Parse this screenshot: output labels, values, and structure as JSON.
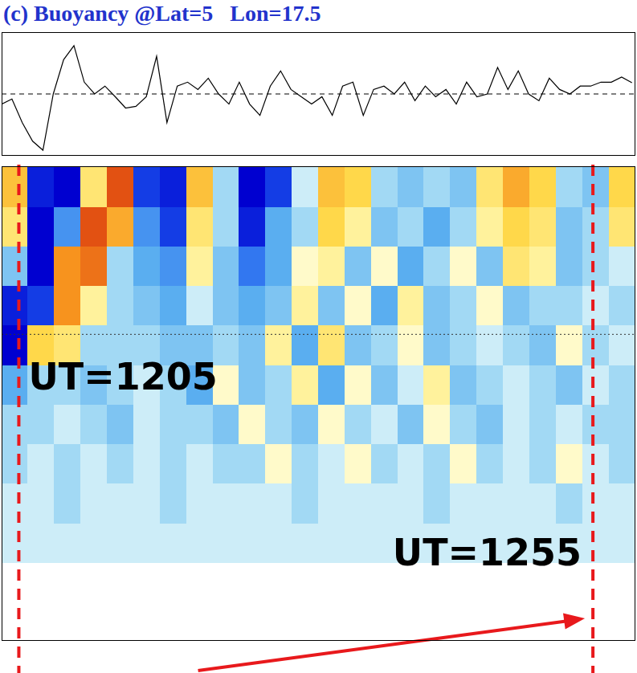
{
  "chart_data": [
    {
      "type": "line",
      "title": "(c) Buoyancy @Lat=5   Lon=17.5",
      "x": [
        1203.5,
        1204.4,
        1205.3,
        1206.2,
        1207.1,
        1208.0,
        1208.9,
        1209.8,
        1210.7,
        1211.6,
        1212.5,
        1213.4,
        1214.3,
        1215.2,
        1216.1,
        1217.0,
        1217.9,
        1218.8,
        1219.7,
        1220.6,
        1221.5,
        1222.4,
        1223.3,
        1224.2,
        1225.1,
        1226.0,
        1226.9,
        1227.8,
        1228.7,
        1229.6,
        1230.5,
        1231.4,
        1232.3,
        1233.2,
        1234.1,
        1235.0,
        1235.9,
        1236.8,
        1237.7,
        1238.6,
        1239.5,
        1240.4,
        1241.3,
        1242.2,
        1243.1,
        1244.0,
        1244.9,
        1245.8,
        1246.7,
        1247.6,
        1248.5,
        1249.4,
        1250.3,
        1251.2,
        1252.1,
        1253.0,
        1253.9,
        1254.8,
        1255.7,
        1256.6,
        1257.5,
        1258.4
      ],
      "values": [
        -0.18,
        -0.09,
        -0.51,
        -0.84,
        -1.0,
        0,
        0.61,
        0.86,
        0.21,
        0,
        0.14,
        -0.05,
        -0.25,
        -0.22,
        -0.05,
        0.67,
        -0.51,
        0.14,
        0.21,
        0.08,
        0.28,
        0,
        -0.18,
        0.21,
        -0.18,
        -0.38,
        0.14,
        0.41,
        0.08,
        -0.05,
        -0.18,
        -0.05,
        -0.38,
        0.14,
        0.21,
        -0.38,
        0.08,
        0.14,
        0,
        0.21,
        -0.12,
        0.14,
        -0.05,
        0.08,
        -0.18,
        0.21,
        -0.05,
        0,
        0.47,
        0.08,
        0.41,
        0,
        -0.12,
        0.28,
        0.08,
        0,
        0.14,
        0.14,
        0.21,
        0.21,
        0.3,
        0.2
      ],
      "color": "#000000",
      "line_style": "solid",
      "xlim": [
        1203.5,
        1258.7
      ],
      "ylim": [
        -1.1,
        1.1
      ],
      "hline": 0,
      "tick_labels": false,
      "grid": false
    },
    {
      "type": "heatmap",
      "x_edges": [
        1203.5,
        1205.8,
        1208.1,
        1210.4,
        1212.7,
        1215.0,
        1217.3,
        1219.6,
        1221.9,
        1224.2,
        1226.5,
        1228.8,
        1231.1,
        1233.4,
        1235.7,
        1238.0,
        1240.3,
        1242.6,
        1244.9,
        1247.2,
        1249.5,
        1251.8,
        1254.1,
        1256.4,
        1258.7
      ],
      "y_edges": [
        0,
        8,
        16,
        24,
        32,
        40,
        48,
        56,
        64,
        72,
        80,
        88,
        96
      ],
      "xlim": [
        1203.5,
        1258.7
      ],
      "ylim": [
        0,
        96
      ],
      "zlim": [
        -1,
        1
      ],
      "z": [
        [
          0,
          0,
          0,
          0,
          0,
          0,
          0,
          0,
          0,
          0,
          0,
          0,
          0,
          0,
          0,
          0,
          0,
          0,
          0,
          0,
          0,
          0,
          0,
          0
        ],
        [
          0,
          0,
          0,
          0,
          0,
          0,
          0,
          0,
          0,
          0,
          0,
          0,
          0,
          0,
          0,
          0,
          0,
          0,
          0,
          0,
          0,
          0,
          0,
          0
        ],
        [
          -0.1,
          -0.1,
          -0.1,
          -0.1,
          -0.1,
          -0.1,
          -0.1,
          -0.1,
          -0.1,
          -0.1,
          -0.1,
          -0.1,
          -0.1,
          -0.1,
          -0.1,
          -0.1,
          -0.1,
          -0.1,
          -0.1,
          -0.1,
          -0.1,
          -0.1,
          -0.1,
          -0.1
        ],
        [
          -0.1,
          -0.1,
          -0.2,
          -0.1,
          -0.1,
          -0.1,
          -0.2,
          -0.1,
          -0.1,
          -0.1,
          -0.1,
          -0.2,
          -0.1,
          -0.1,
          -0.1,
          -0.1,
          -0.2,
          -0.1,
          -0.1,
          -0.1,
          -0.1,
          -0.2,
          -0.1,
          -0.1
        ],
        [
          -0.2,
          -0.1,
          -0.2,
          -0.1,
          -0.2,
          -0.1,
          -0.2,
          -0.1,
          -0.2,
          -0.2,
          0.1,
          -0.2,
          -0.1,
          0.1,
          -0.2,
          -0.1,
          -0.2,
          0.1,
          -0.2,
          -0.1,
          -0.2,
          0.1,
          -0.1,
          -0.2
        ],
        [
          -0.2,
          -0.2,
          -0.1,
          -0.2,
          -0.3,
          -0.1,
          -0.2,
          -0.2,
          -0.3,
          0.1,
          -0.2,
          -0.3,
          0.1,
          -0.2,
          -0.1,
          -0.3,
          0.1,
          -0.2,
          -0.3,
          -0.1,
          -0.2,
          -0.1,
          -0.2,
          -0.2
        ],
        [
          -0.4,
          -0.2,
          -0.2,
          -0.3,
          -0.2,
          -0.1,
          -0.2,
          -0.4,
          0.1,
          -0.3,
          -0.2,
          0.2,
          -0.4,
          0.1,
          -0.3,
          -0.1,
          0.2,
          -0.3,
          -0.2,
          -0.1,
          -0.2,
          -0.3,
          -0.1,
          -0.2
        ],
        [
          -1,
          0.4,
          0.3,
          -0.2,
          -0.2,
          -0.2,
          -0.3,
          -0.3,
          -0.2,
          -0.3,
          0.2,
          -0.4,
          0.3,
          -0.3,
          -0.2,
          0.1,
          -0.3,
          -0.2,
          -0.1,
          -0.2,
          -0.3,
          0.1,
          -0.2,
          -0.1
        ],
        [
          -0.9,
          -0.8,
          0.7,
          0.2,
          -0.2,
          -0.3,
          -0.4,
          -0.1,
          -0.3,
          -0.4,
          -0.3,
          0.2,
          -0.3,
          0.1,
          -0.4,
          0.2,
          -0.3,
          -0.2,
          0.1,
          -0.3,
          -0.2,
          -0.2,
          -0.1,
          -0.2
        ],
        [
          -0.3,
          -1,
          0.7,
          0.8,
          -0.2,
          -0.4,
          -0.5,
          0.2,
          -0.3,
          -0.6,
          -0.4,
          0.1,
          0.2,
          -0.3,
          0.1,
          -0.4,
          -0.2,
          0.1,
          -0.3,
          0.3,
          0.2,
          -0.3,
          -0.2,
          -0.1
        ],
        [
          0.3,
          -1,
          -0.5,
          0.9,
          0.6,
          -0.5,
          -0.8,
          0.3,
          -0.2,
          -0.9,
          -0.4,
          -0.2,
          0.4,
          0.2,
          -0.3,
          -0.2,
          -0.4,
          -0.2,
          0.2,
          0.4,
          0.3,
          -0.3,
          -0.2,
          0.3
        ],
        [
          0.5,
          -0.9,
          -1,
          0.3,
          0.9,
          -0.8,
          -0.9,
          0.5,
          -0.2,
          -1,
          -0.8,
          -0.1,
          0.5,
          0.4,
          -0.2,
          -0.3,
          -0.2,
          -0.3,
          0.3,
          0.6,
          0.4,
          -0.2,
          -0.3,
          0.4
        ]
      ],
      "hline": 62,
      "markers": [
        {
          "x": 1205,
          "label": "UT=1205"
        },
        {
          "x": 1255,
          "label": "UT=1255"
        }
      ],
      "tick_labels": false,
      "grid": false
    }
  ]
}
